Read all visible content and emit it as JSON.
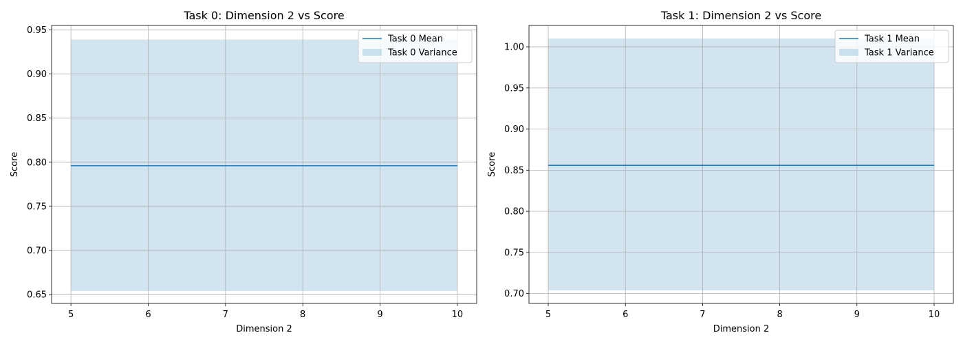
{
  "chart_data": [
    {
      "type": "line",
      "title": "Task 0: Dimension 2 vs Score",
      "xlabel": "Dimension 2",
      "ylabel": "Score",
      "xlim": [
        4.75,
        10.25
      ],
      "ylim": [
        0.64,
        0.955
      ],
      "xticks": [
        5,
        6,
        7,
        8,
        9,
        10
      ],
      "yticks": [
        0.65,
        0.7,
        0.75,
        0.8,
        0.85,
        0.9,
        0.95
      ],
      "ytick_labels": [
        "0.65",
        "0.70",
        "0.75",
        "0.80",
        "0.85",
        "0.90",
        "0.95"
      ],
      "grid": true,
      "legend_position": "top-right",
      "series": [
        {
          "name": "Task 0 Mean",
          "kind": "line",
          "x": [
            5,
            10
          ],
          "y": [
            0.796,
            0.796
          ],
          "color": "#1f77b4"
        },
        {
          "name": "Task 0 Variance",
          "kind": "band",
          "x": [
            5,
            10
          ],
          "lower": [
            0.654,
            0.654
          ],
          "upper": [
            0.939,
            0.939
          ],
          "color": "#1f77b4",
          "alpha": 0.2
        }
      ]
    },
    {
      "type": "line",
      "title": "Task 1: Dimension 2 vs Score",
      "xlabel": "Dimension 2",
      "ylabel": "Score",
      "xlim": [
        4.75,
        10.25
      ],
      "ylim": [
        0.688,
        1.026
      ],
      "xticks": [
        5,
        6,
        7,
        8,
        9,
        10
      ],
      "yticks": [
        0.7,
        0.75,
        0.8,
        0.85,
        0.9,
        0.95,
        1.0
      ],
      "ytick_labels": [
        "0.70",
        "0.75",
        "0.80",
        "0.85",
        "0.90",
        "0.95",
        "1.00"
      ],
      "grid": true,
      "legend_position": "top-right",
      "series": [
        {
          "name": "Task 1 Mean",
          "kind": "line",
          "x": [
            5,
            10
          ],
          "y": [
            0.856,
            0.856
          ],
          "color": "#1f77b4"
        },
        {
          "name": "Task 1 Variance",
          "kind": "band",
          "x": [
            5,
            10
          ],
          "lower": [
            0.704,
            0.704
          ],
          "upper": [
            1.01,
            1.01
          ],
          "color": "#1f77b4",
          "alpha": 0.2
        }
      ]
    }
  ]
}
